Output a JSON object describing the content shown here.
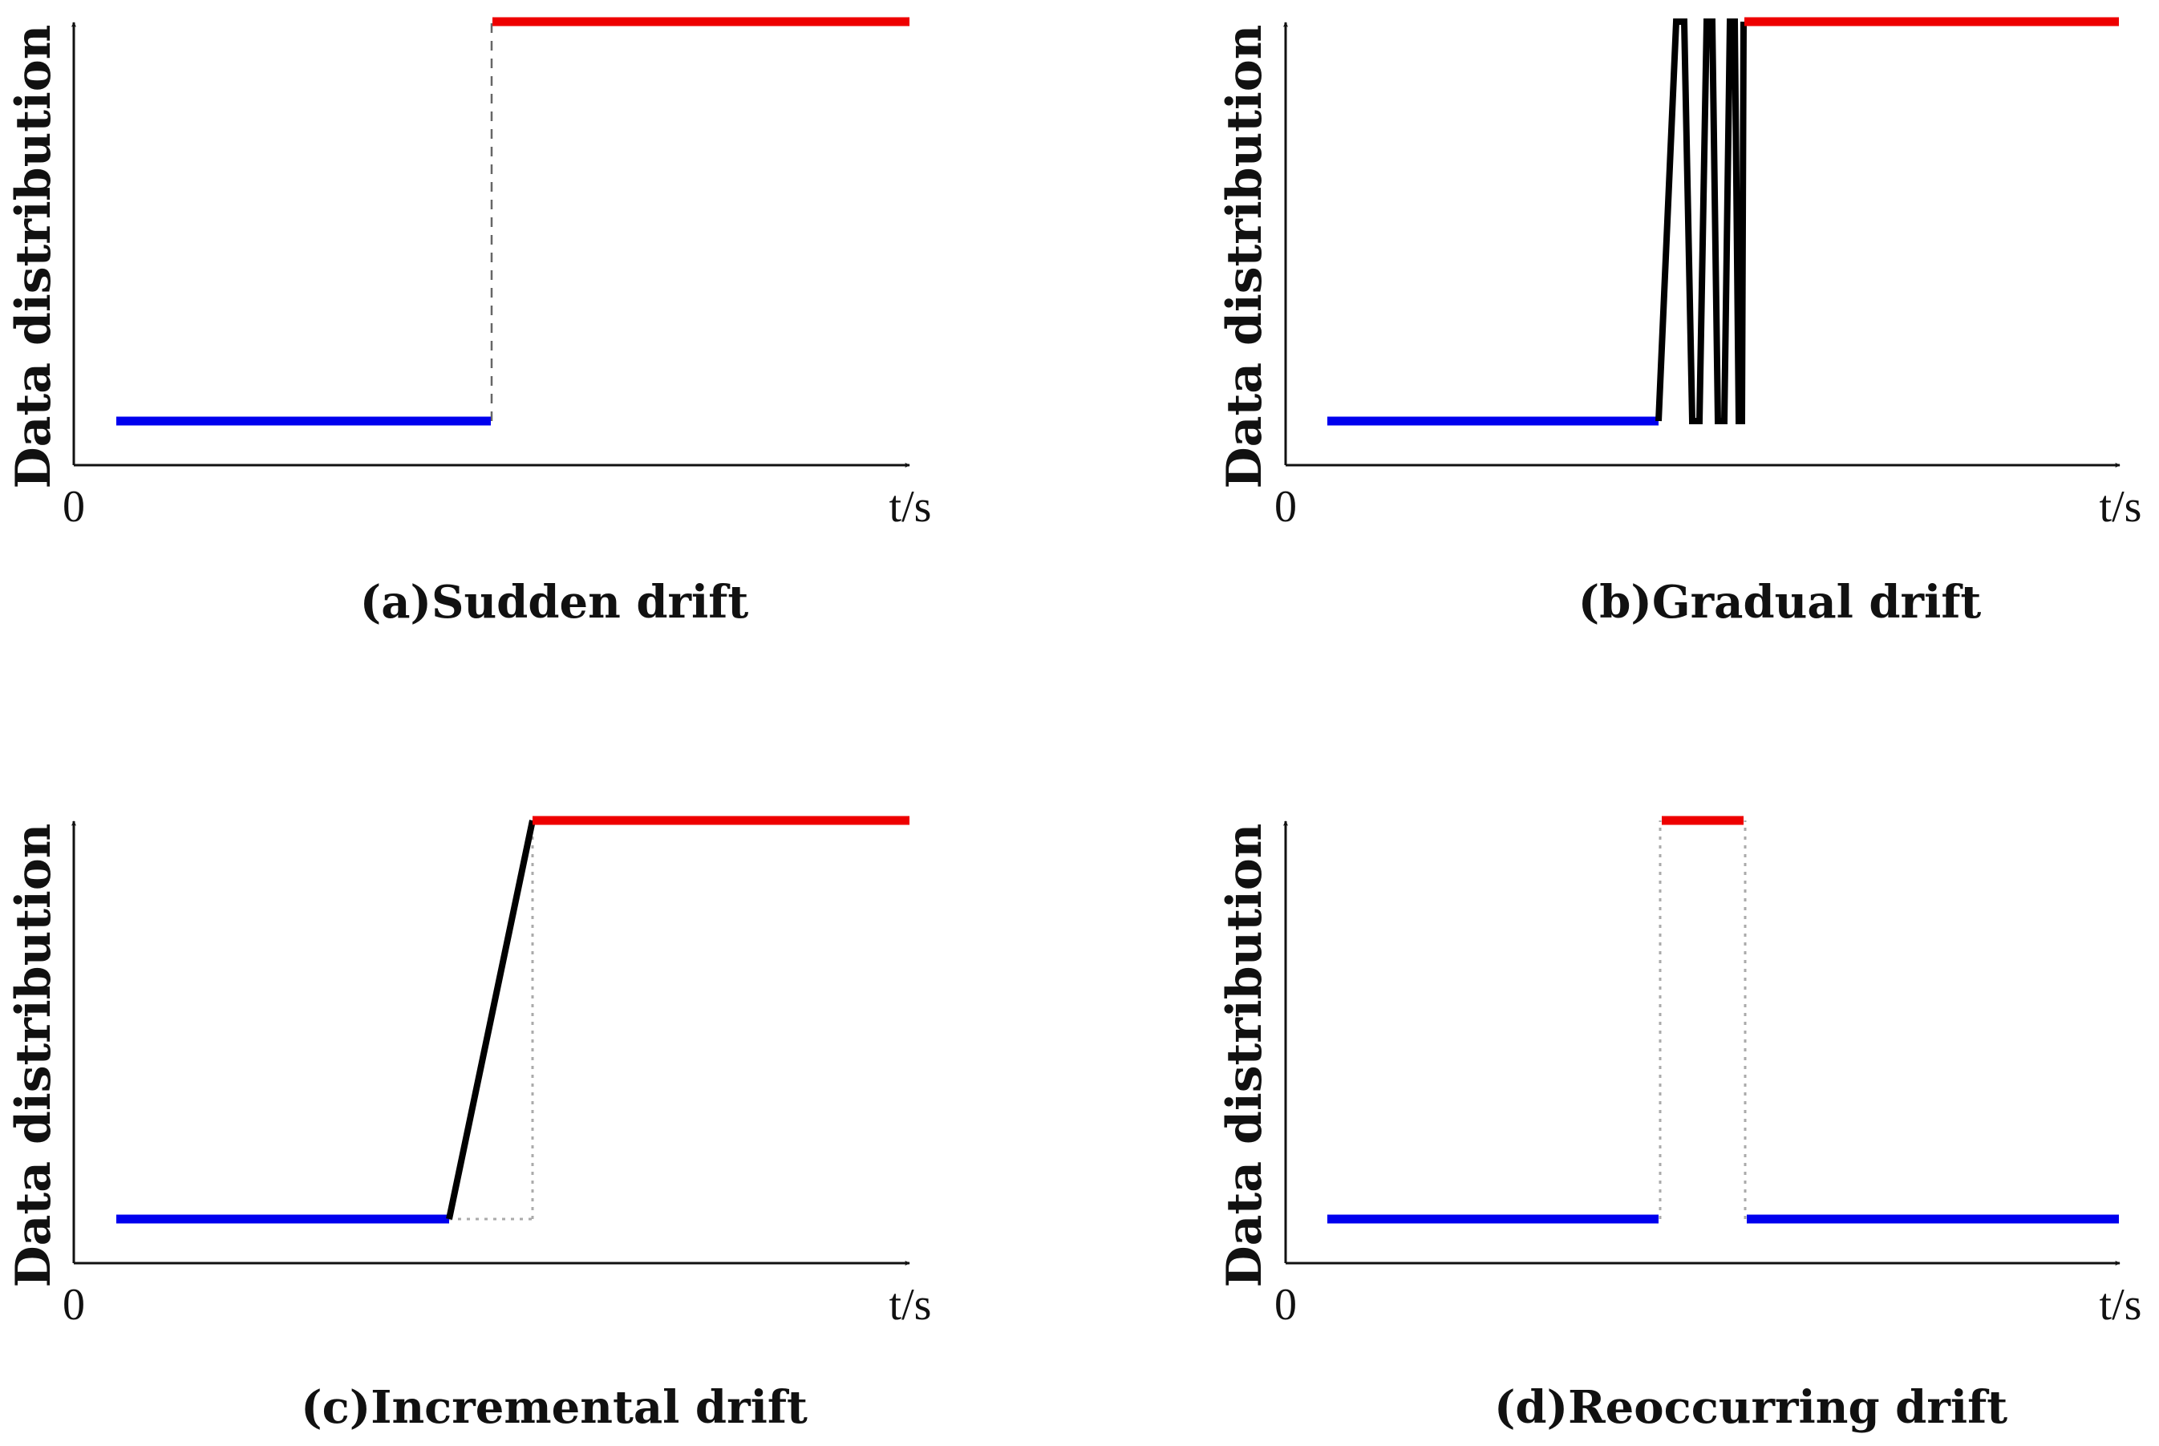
{
  "figure": {
    "panels": [
      {
        "id": "a",
        "caption": "(a)Sudden drift",
        "ylabel": "Data distribution",
        "xlabel": "t/s",
        "origin_label": "0"
      },
      {
        "id": "b",
        "caption": "(b)Gradual drift",
        "ylabel": "Data distribution",
        "xlabel": "t/s",
        "origin_label": "0"
      },
      {
        "id": "c",
        "caption": "(c)Incremental drift",
        "ylabel": "Data distribution",
        "xlabel": "t/s",
        "origin_label": "0"
      },
      {
        "id": "d",
        "caption": "(d)Reoccurring drift",
        "ylabel": "Data distribution",
        "xlabel": "t/s",
        "origin_label": "0"
      }
    ]
  },
  "colors": {
    "old_concept": "#0000ee",
    "new_concept": "#ee0000",
    "transition": "#000000",
    "axis": "#111111"
  }
}
